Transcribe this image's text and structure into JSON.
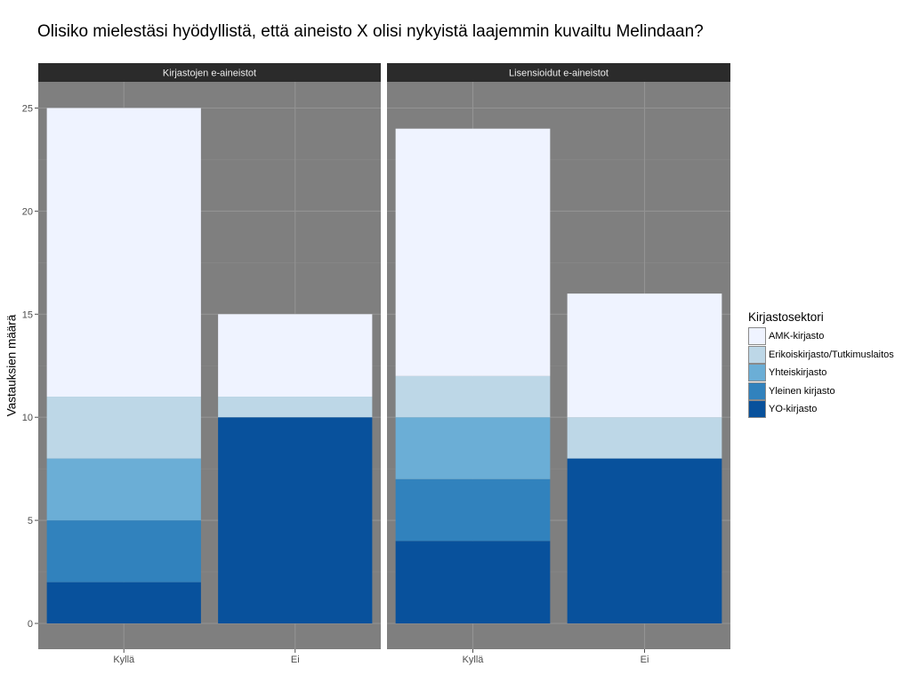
{
  "title": "Olisiko mielestäsi hyödyllistä, että aineisto X olisi nykyistä laajemmin kuvailtu Melindaan?",
  "chart_data": {
    "type": "bar",
    "stacked": true,
    "facets": [
      "Kirjastojen e-aineistot",
      "Lisensioidut e-aineistot"
    ],
    "categories": [
      "Kyllä",
      "Ei"
    ],
    "ylabel": "Vastauksien määrä",
    "xlabel": "",
    "ylim": [
      0,
      25
    ],
    "yticks": [
      0,
      5,
      10,
      15,
      20,
      25
    ],
    "legend_title": "Kirjastosektori",
    "legend_position": "right",
    "grid": true,
    "series": [
      {
        "name": "AMK-kirjasto",
        "color": "#eff3ff",
        "values": {
          "Kirjastojen e-aineistot": [
            14,
            4
          ],
          "Lisensioidut e-aineistot": [
            12,
            6
          ]
        }
      },
      {
        "name": "Erikoiskirjasto/Tutkimuslaitos",
        "color": "#bdd7e7",
        "values": {
          "Kirjastojen e-aineistot": [
            3,
            1
          ],
          "Lisensioidut e-aineistot": [
            2,
            2
          ]
        }
      },
      {
        "name": "Yhteiskirjasto",
        "color": "#6baed6",
        "values": {
          "Kirjastojen e-aineistot": [
            3,
            0
          ],
          "Lisensioidut e-aineistot": [
            3,
            0
          ]
        }
      },
      {
        "name": "Yleinen kirjasto",
        "color": "#3182bd",
        "values": {
          "Kirjastojen e-aineistot": [
            3,
            0
          ],
          "Lisensioidut e-aineistot": [
            3,
            0
          ]
        }
      },
      {
        "name": "YO-kirjasto",
        "color": "#08519c",
        "values": {
          "Kirjastojen e-aineistot": [
            2,
            10
          ],
          "Lisensioidut e-aineistot": [
            4,
            8
          ]
        }
      }
    ]
  }
}
